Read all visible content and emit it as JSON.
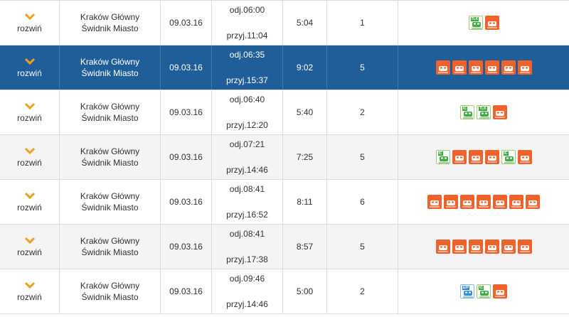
{
  "rows": [
    {
      "expand": "rozwiń",
      "from": "Kraków Główny",
      "to": "Świdnik Miasto",
      "date": "09.03.16",
      "dep": "odj.06:00",
      "arr": "przyj.11:04",
      "duration": "5:04",
      "changes": "1",
      "selected": false,
      "trains": [
        {
          "type": "tlk",
          "label": "TLK"
        },
        {
          "type": "reg",
          "label": ""
        }
      ]
    },
    {
      "expand": "rozwiń",
      "from": "Kraków Główny",
      "to": "Świdnik Miasto",
      "date": "09.03.16",
      "dep": "odj.06:35",
      "arr": "przyj.15:37",
      "duration": "9:02",
      "changes": "5",
      "selected": true,
      "trains": [
        {
          "type": "reg",
          "label": ""
        },
        {
          "type": "reg",
          "label": ""
        },
        {
          "type": "reg",
          "label": ""
        },
        {
          "type": "reg",
          "label": ""
        },
        {
          "type": "reg",
          "label": ""
        },
        {
          "type": "reg",
          "label": ""
        }
      ]
    },
    {
      "expand": "rozwiń",
      "from": "Kraków Główny",
      "to": "Świdnik Miasto",
      "date": "09.03.16",
      "dep": "odj.06:40",
      "arr": "przyj.12:20",
      "duration": "5:40",
      "changes": "2",
      "selected": false,
      "trains": [
        {
          "type": "ic",
          "label": "IC"
        },
        {
          "type": "tlk",
          "label": "TLK"
        },
        {
          "type": "reg",
          "label": ""
        }
      ]
    },
    {
      "expand": "rozwiń",
      "from": "Kraków Główny",
      "to": "Świdnik Miasto",
      "date": "09.03.16",
      "dep": "odj.07:21",
      "arr": "przyj.14:46",
      "duration": "7:25",
      "changes": "5",
      "selected": false,
      "trains": [
        {
          "type": "ic",
          "label": "IC"
        },
        {
          "type": "reg",
          "label": ""
        },
        {
          "type": "reg",
          "label": ""
        },
        {
          "type": "reg",
          "label": ""
        },
        {
          "type": "ic",
          "label": "IC"
        },
        {
          "type": "reg",
          "label": ""
        }
      ]
    },
    {
      "expand": "rozwiń",
      "from": "Kraków Główny",
      "to": "Świdnik Miasto",
      "date": "09.03.16",
      "dep": "odj.08:41",
      "arr": "przyj.16:52",
      "duration": "8:11",
      "changes": "6",
      "selected": false,
      "trains": [
        {
          "type": "reg",
          "label": ""
        },
        {
          "type": "reg",
          "label": ""
        },
        {
          "type": "reg",
          "label": ""
        },
        {
          "type": "reg",
          "label": ""
        },
        {
          "type": "reg",
          "label": ""
        },
        {
          "type": "reg",
          "label": ""
        },
        {
          "type": "reg",
          "label": ""
        }
      ]
    },
    {
      "expand": "rozwiń",
      "from": "Kraków Główny",
      "to": "Świdnik Miasto",
      "date": "09.03.16",
      "dep": "odj.08:41",
      "arr": "przyj.17:38",
      "duration": "8:57",
      "changes": "5",
      "selected": false,
      "trains": [
        {
          "type": "reg",
          "label": ""
        },
        {
          "type": "reg",
          "label": ""
        },
        {
          "type": "reg",
          "label": ""
        },
        {
          "type": "reg",
          "label": ""
        },
        {
          "type": "reg",
          "label": ""
        },
        {
          "type": "reg",
          "label": ""
        }
      ]
    },
    {
      "expand": "rozwiń",
      "from": "Kraków Główny",
      "to": "Świdnik Miasto",
      "date": "09.03.16",
      "dep": "odj.09:46",
      "arr": "przyj.14:46",
      "duration": "5:00",
      "changes": "2",
      "selected": false,
      "trains": [
        {
          "type": "eip",
          "label": "EIP"
        },
        {
          "type": "ic",
          "label": "IC"
        },
        {
          "type": "reg",
          "label": ""
        }
      ]
    }
  ],
  "colors": {
    "accent": "#f0a020",
    "selected_bg": "#1f5e99",
    "regional": "#f0622b",
    "ic_green": "#3aa63a",
    "eip_blue": "#2f86d6"
  },
  "icons": {
    "expand": "chevron-down-icon",
    "regional": "regional-train-icon",
    "ic": "ic-train-icon",
    "tlk": "tlk-train-icon",
    "eip": "eip-train-icon"
  }
}
